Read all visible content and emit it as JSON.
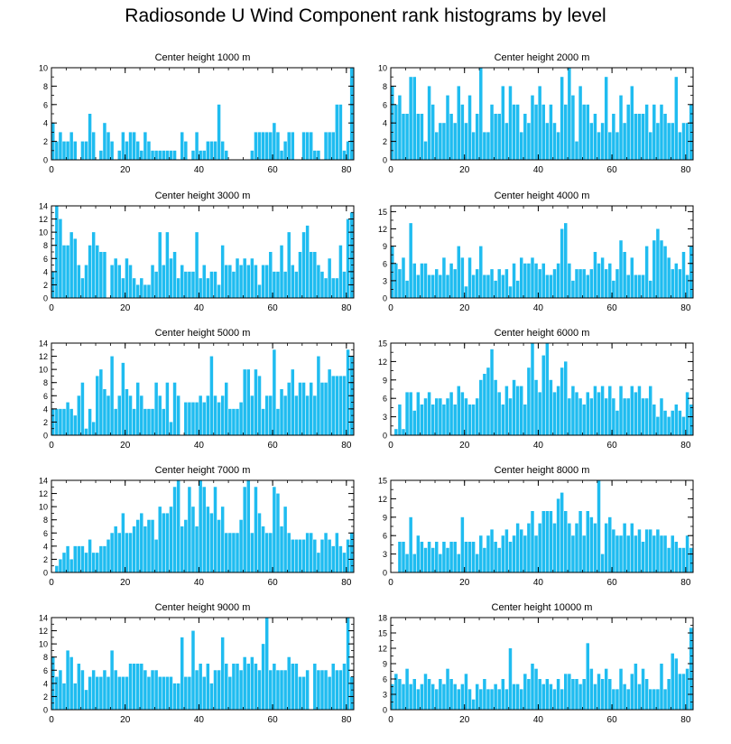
{
  "page_title": "Radiosonde U Wind Component rank histograms by level",
  "bar_color": "#1fbcf0",
  "chart_data": [
    {
      "type": "bar",
      "title": "Center height 1000 m",
      "xlim": [
        0,
        82
      ],
      "ylim": [
        0,
        10
      ],
      "xticks": [
        0,
        20,
        40,
        60,
        80
      ],
      "yticks": [
        0,
        2,
        4,
        6,
        8,
        10
      ],
      "values": [
        4,
        2,
        3,
        2,
        2,
        3,
        2,
        0,
        2,
        2,
        5,
        3,
        0,
        1,
        4,
        3,
        2,
        0,
        1,
        3,
        2,
        3,
        3,
        2,
        1,
        3,
        2,
        1,
        1,
        1,
        1,
        1,
        1,
        1,
        0,
        3,
        2,
        0,
        1,
        3,
        1,
        1,
        2,
        2,
        2,
        6,
        2,
        1,
        0,
        0,
        0,
        0,
        0,
        0,
        1,
        3,
        3,
        3,
        3,
        3,
        4,
        3,
        1,
        2,
        3,
        3,
        0,
        0,
        3,
        3,
        3,
        1,
        1,
        0,
        3,
        3,
        3,
        6,
        6,
        1,
        2,
        10
      ]
    },
    {
      "type": "bar",
      "title": "Center height 2000 m",
      "xlim": [
        0,
        82
      ],
      "ylim": [
        0,
        10
      ],
      "xticks": [
        0,
        20,
        40,
        60,
        80
      ],
      "yticks": [
        0,
        2,
        4,
        6,
        8,
        10
      ],
      "values": [
        8,
        6,
        7,
        5,
        5,
        9,
        9,
        5,
        5,
        2,
        8,
        6,
        3,
        4,
        4,
        7,
        5,
        4,
        8,
        6,
        4,
        7,
        3,
        5,
        10,
        3,
        3,
        6,
        5,
        5,
        8,
        4,
        8,
        6,
        6,
        3,
        5,
        4,
        7,
        6,
        8,
        6,
        4,
        6,
        4,
        3,
        9,
        6,
        10,
        7,
        2,
        8,
        6,
        6,
        4,
        5,
        3,
        4,
        9,
        3,
        5,
        3,
        7,
        4,
        6,
        8,
        5,
        5,
        5,
        6,
        3,
        6,
        4,
        6,
        5,
        4,
        4,
        9,
        3,
        4,
        4,
        6
      ]
    },
    {
      "type": "bar",
      "title": "Center height 3000 m",
      "xlim": [
        0,
        82
      ],
      "ylim": [
        0,
        14
      ],
      "xticks": [
        0,
        20,
        40,
        60,
        80
      ],
      "yticks": [
        0,
        2,
        4,
        6,
        8,
        10,
        12,
        14
      ],
      "values": [
        4,
        14,
        12,
        8,
        8,
        10,
        9,
        5,
        3,
        5,
        8,
        10,
        8,
        7,
        7,
        0,
        5,
        6,
        5,
        3,
        6,
        5,
        3,
        2,
        3,
        2,
        2,
        5,
        4,
        10,
        5,
        10,
        6,
        7,
        3,
        5,
        4,
        4,
        4,
        10,
        3,
        5,
        3,
        4,
        4,
        2,
        8,
        5,
        5,
        4,
        6,
        5,
        6,
        5,
        6,
        5,
        2,
        5,
        5,
        7,
        4,
        4,
        8,
        4,
        10,
        5,
        4,
        7,
        10,
        11,
        7,
        7,
        5,
        4,
        3,
        6,
        3,
        3,
        8,
        4,
        12,
        13
      ]
    },
    {
      "type": "bar",
      "title": "Center height 4000 m",
      "xlim": [
        0,
        82
      ],
      "ylim": [
        0,
        16
      ],
      "xticks": [
        0,
        20,
        40,
        60,
        80
      ],
      "yticks": [
        0,
        3,
        6,
        9,
        12,
        15
      ],
      "values": [
        9,
        6,
        5,
        7,
        3,
        13,
        6,
        4,
        6,
        6,
        4,
        4,
        5,
        4,
        7,
        4,
        6,
        5,
        9,
        7,
        2,
        7,
        4,
        5,
        9,
        4,
        4,
        5,
        3,
        5,
        4,
        5,
        2,
        6,
        3,
        7,
        6,
        6,
        7,
        6,
        5,
        6,
        4,
        4,
        5,
        6,
        12,
        13,
        6,
        3,
        5,
        5,
        5,
        4,
        5,
        8,
        6,
        7,
        5,
        6,
        3,
        5,
        10,
        8,
        4,
        7,
        4,
        4,
        4,
        9,
        3,
        10,
        12,
        10,
        9,
        7,
        5,
        6,
        5,
        8,
        4,
        9
      ]
    },
    {
      "type": "bar",
      "title": "Center height 5000 m",
      "xlim": [
        0,
        82
      ],
      "ylim": [
        0,
        14
      ],
      "xticks": [
        0,
        20,
        40,
        60,
        80
      ],
      "yticks": [
        0,
        2,
        4,
        6,
        8,
        10,
        12,
        14
      ],
      "values": [
        4,
        4,
        4,
        4,
        5,
        4,
        3,
        6,
        8,
        1,
        4,
        2,
        9,
        10,
        7,
        6,
        12,
        4,
        6,
        11,
        7,
        6,
        4,
        8,
        6,
        4,
        4,
        4,
        8,
        6,
        4,
        8,
        2,
        8,
        6,
        0,
        5,
        5,
        5,
        5,
        6,
        5,
        6,
        12,
        6,
        5,
        6,
        8,
        4,
        4,
        4,
        5,
        10,
        10,
        6,
        10,
        9,
        4,
        6,
        6,
        13,
        4,
        7,
        6,
        8,
        10,
        6,
        8,
        8,
        6,
        8,
        6,
        12,
        8,
        8,
        10,
        9,
        9,
        9,
        9,
        13,
        12
      ]
    },
    {
      "type": "bar",
      "title": "Center height 6000 m",
      "xlim": [
        0,
        82
      ],
      "ylim": [
        0,
        15
      ],
      "xticks": [
        0,
        20,
        40,
        60,
        80
      ],
      "yticks": [
        0,
        3,
        6,
        9,
        12,
        15
      ],
      "values": [
        0,
        1,
        5,
        1,
        7,
        7,
        4,
        7,
        5,
        6,
        7,
        5,
        6,
        6,
        5,
        6,
        7,
        5,
        8,
        7,
        6,
        5,
        5,
        6,
        9,
        10,
        11,
        14,
        9,
        7,
        5,
        8,
        6,
        9,
        8,
        8,
        5,
        11,
        15,
        9,
        7,
        13,
        15,
        9,
        7,
        8,
        11,
        12,
        6,
        8,
        7,
        6,
        5,
        7,
        6,
        8,
        7,
        8,
        6,
        8,
        6,
        4,
        8,
        6,
        6,
        8,
        7,
        8,
        6,
        6,
        8,
        5,
        3,
        6,
        4,
        3,
        4,
        5,
        4,
        3,
        7,
        5
      ]
    },
    {
      "type": "bar",
      "title": "Center height 7000 m",
      "xlim": [
        0,
        82
      ],
      "ylim": [
        0,
        14
      ],
      "xticks": [
        0,
        20,
        40,
        60,
        80
      ],
      "yticks": [
        0,
        2,
        4,
        6,
        8,
        10,
        12,
        14
      ],
      "values": [
        0,
        1,
        2,
        3,
        4,
        2,
        4,
        4,
        4,
        3,
        5,
        3,
        3,
        4,
        4,
        5,
        6,
        7,
        6,
        9,
        6,
        6,
        7,
        8,
        9,
        7,
        8,
        8,
        5,
        10,
        9,
        9,
        10,
        13,
        14,
        7,
        8,
        13,
        10,
        7,
        14,
        13,
        10,
        9,
        13,
        8,
        10,
        6,
        6,
        6,
        6,
        8,
        13,
        14,
        6,
        13,
        9,
        7,
        6,
        6,
        13,
        12,
        7,
        10,
        6,
        5,
        5,
        5,
        5,
        6,
        6,
        5,
        3,
        5,
        6,
        5,
        4,
        6,
        4,
        3,
        5,
        6
      ]
    },
    {
      "type": "bar",
      "title": "Center height 8000 m",
      "xlim": [
        0,
        82
      ],
      "ylim": [
        0,
        15
      ],
      "xticks": [
        0,
        20,
        40,
        60,
        80
      ],
      "yticks": [
        0,
        3,
        6,
        9,
        12,
        15
      ],
      "values": [
        0,
        0,
        5,
        5,
        3,
        9,
        3,
        6,
        5,
        4,
        5,
        4,
        5,
        3,
        5,
        4,
        5,
        5,
        3,
        9,
        5,
        5,
        5,
        3,
        6,
        4,
        6,
        7,
        5,
        4,
        6,
        7,
        5,
        6,
        8,
        7,
        6,
        8,
        10,
        6,
        8,
        10,
        10,
        10,
        8,
        12,
        13,
        10,
        8,
        6,
        8,
        10,
        6,
        10,
        9,
        8,
        15,
        3,
        8,
        9,
        7,
        6,
        6,
        8,
        6,
        8,
        6,
        7,
        5,
        7,
        7,
        6,
        7,
        6,
        6,
        4,
        6,
        5,
        4,
        4,
        6,
        4
      ]
    },
    {
      "type": "bar",
      "title": "Center height 9000 m",
      "xlim": [
        0,
        82
      ],
      "ylim": [
        0,
        14
      ],
      "xticks": [
        0,
        20,
        40,
        60,
        80
      ],
      "yticks": [
        0,
        2,
        4,
        6,
        8,
        10,
        12,
        14
      ],
      "values": [
        8,
        5,
        6,
        4,
        9,
        8,
        4,
        7,
        6,
        3,
        5,
        6,
        5,
        5,
        6,
        5,
        9,
        6,
        5,
        5,
        5,
        7,
        7,
        7,
        7,
        6,
        5,
        6,
        6,
        5,
        5,
        5,
        5,
        4,
        4,
        11,
        5,
        5,
        12,
        6,
        7,
        5,
        7,
        4,
        6,
        6,
        11,
        7,
        5,
        7,
        7,
        6,
        8,
        7,
        8,
        7,
        6,
        10,
        14,
        6,
        7,
        6,
        6,
        6,
        8,
        7,
        7,
        5,
        5,
        6,
        0,
        7,
        6,
        6,
        6,
        5,
        7,
        6,
        6,
        7,
        14,
        5
      ]
    },
    {
      "type": "bar",
      "title": "Center height 10000 m",
      "xlim": [
        0,
        82
      ],
      "ylim": [
        0,
        18
      ],
      "xticks": [
        0,
        20,
        40,
        60,
        80
      ],
      "yticks": [
        0,
        3,
        6,
        9,
        12,
        15,
        18
      ],
      "values": [
        5,
        7,
        6,
        5,
        8,
        5,
        6,
        4,
        5,
        7,
        6,
        5,
        4,
        6,
        5,
        8,
        6,
        5,
        4,
        5,
        7,
        4,
        2,
        5,
        4,
        6,
        4,
        4,
        5,
        4,
        6,
        4,
        12,
        5,
        5,
        4,
        7,
        6,
        9,
        8,
        6,
        5,
        6,
        5,
        4,
        6,
        4,
        7,
        7,
        6,
        6,
        5,
        6,
        13,
        8,
        5,
        7,
        6,
        8,
        6,
        4,
        4,
        8,
        5,
        4,
        7,
        9,
        5,
        8,
        6,
        4,
        4,
        4,
        9,
        4,
        6,
        11,
        10,
        7,
        7,
        8,
        16
      ]
    }
  ]
}
